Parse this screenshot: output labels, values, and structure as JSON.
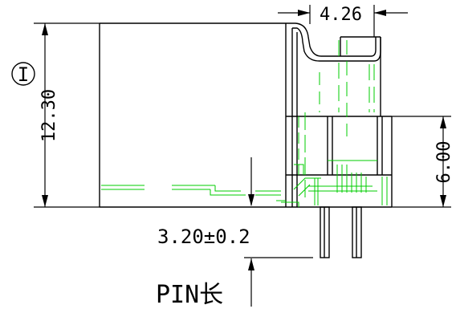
{
  "drawing": {
    "circle_label": "I",
    "dim_width_top": "4.26",
    "dim_height_left": "12.30",
    "dim_height_right": "6.00",
    "dim_pin_tolerance": "3.20±0.2",
    "pin_label": "PIN长"
  },
  "colors": {
    "outline": "#000000",
    "hidden_lines": "#00cc00",
    "background": "#ffffff"
  }
}
